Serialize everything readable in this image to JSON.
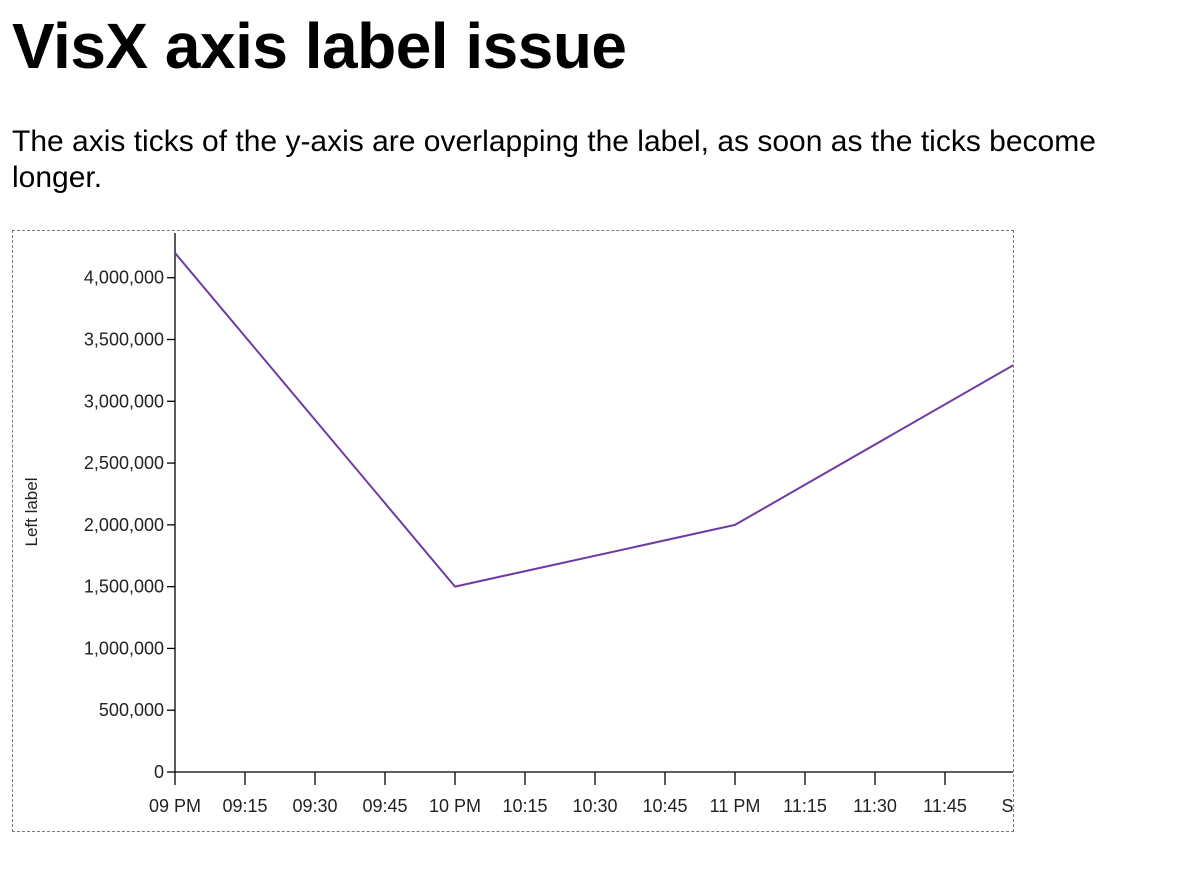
{
  "page": {
    "title": "VisX axis label issue",
    "description": "The axis ticks of the y-axis are overlapping the label, as soon as the ticks become longer."
  },
  "chart_data": {
    "type": "line",
    "title": "",
    "xlabel": "",
    "ylabel": "Left label",
    "x_is_time": true,
    "x": [
      "21:00",
      "22:00",
      "23:00",
      "24:00"
    ],
    "series": [
      {
        "values": [
          4200000,
          1500000,
          2000000,
          3300000
        ],
        "color": "#6f3aa6"
      }
    ],
    "xlim": [
      "21:00",
      "24:00"
    ],
    "ylim": [
      0,
      4200000
    ],
    "y_ticks": [
      {
        "value": 0,
        "label": "0"
      },
      {
        "value": 500000,
        "label": "500,000"
      },
      {
        "value": 1000000,
        "label": "1,000,000"
      },
      {
        "value": 1500000,
        "label": "1,500,000"
      },
      {
        "value": 2000000,
        "label": "2,000,000"
      },
      {
        "value": 2500000,
        "label": "2,500,000"
      },
      {
        "value": 3000000,
        "label": "3,000,000"
      },
      {
        "value": 3500000,
        "label": "3,500,000"
      },
      {
        "value": 4000000,
        "label": "4,000,000"
      }
    ],
    "x_ticks": [
      {
        "value": "21:00",
        "label": "09 PM"
      },
      {
        "value": "21:15",
        "label": "09:15"
      },
      {
        "value": "21:30",
        "label": "09:30"
      },
      {
        "value": "21:45",
        "label": "09:45"
      },
      {
        "value": "22:00",
        "label": "10 PM"
      },
      {
        "value": "22:15",
        "label": "10:15"
      },
      {
        "value": "22:30",
        "label": "10:30"
      },
      {
        "value": "22:45",
        "label": "10:45"
      },
      {
        "value": "23:00",
        "label": "11 PM"
      },
      {
        "value": "23:15",
        "label": "11:15"
      },
      {
        "value": "23:30",
        "label": "11:30"
      },
      {
        "value": "23:45",
        "label": "11:45"
      },
      {
        "value": "24:00",
        "label": "Sat"
      }
    ],
    "grid": false,
    "legend": "none",
    "colors": {
      "axis": "#000000",
      "frame_border": "#7a7a7a"
    }
  }
}
